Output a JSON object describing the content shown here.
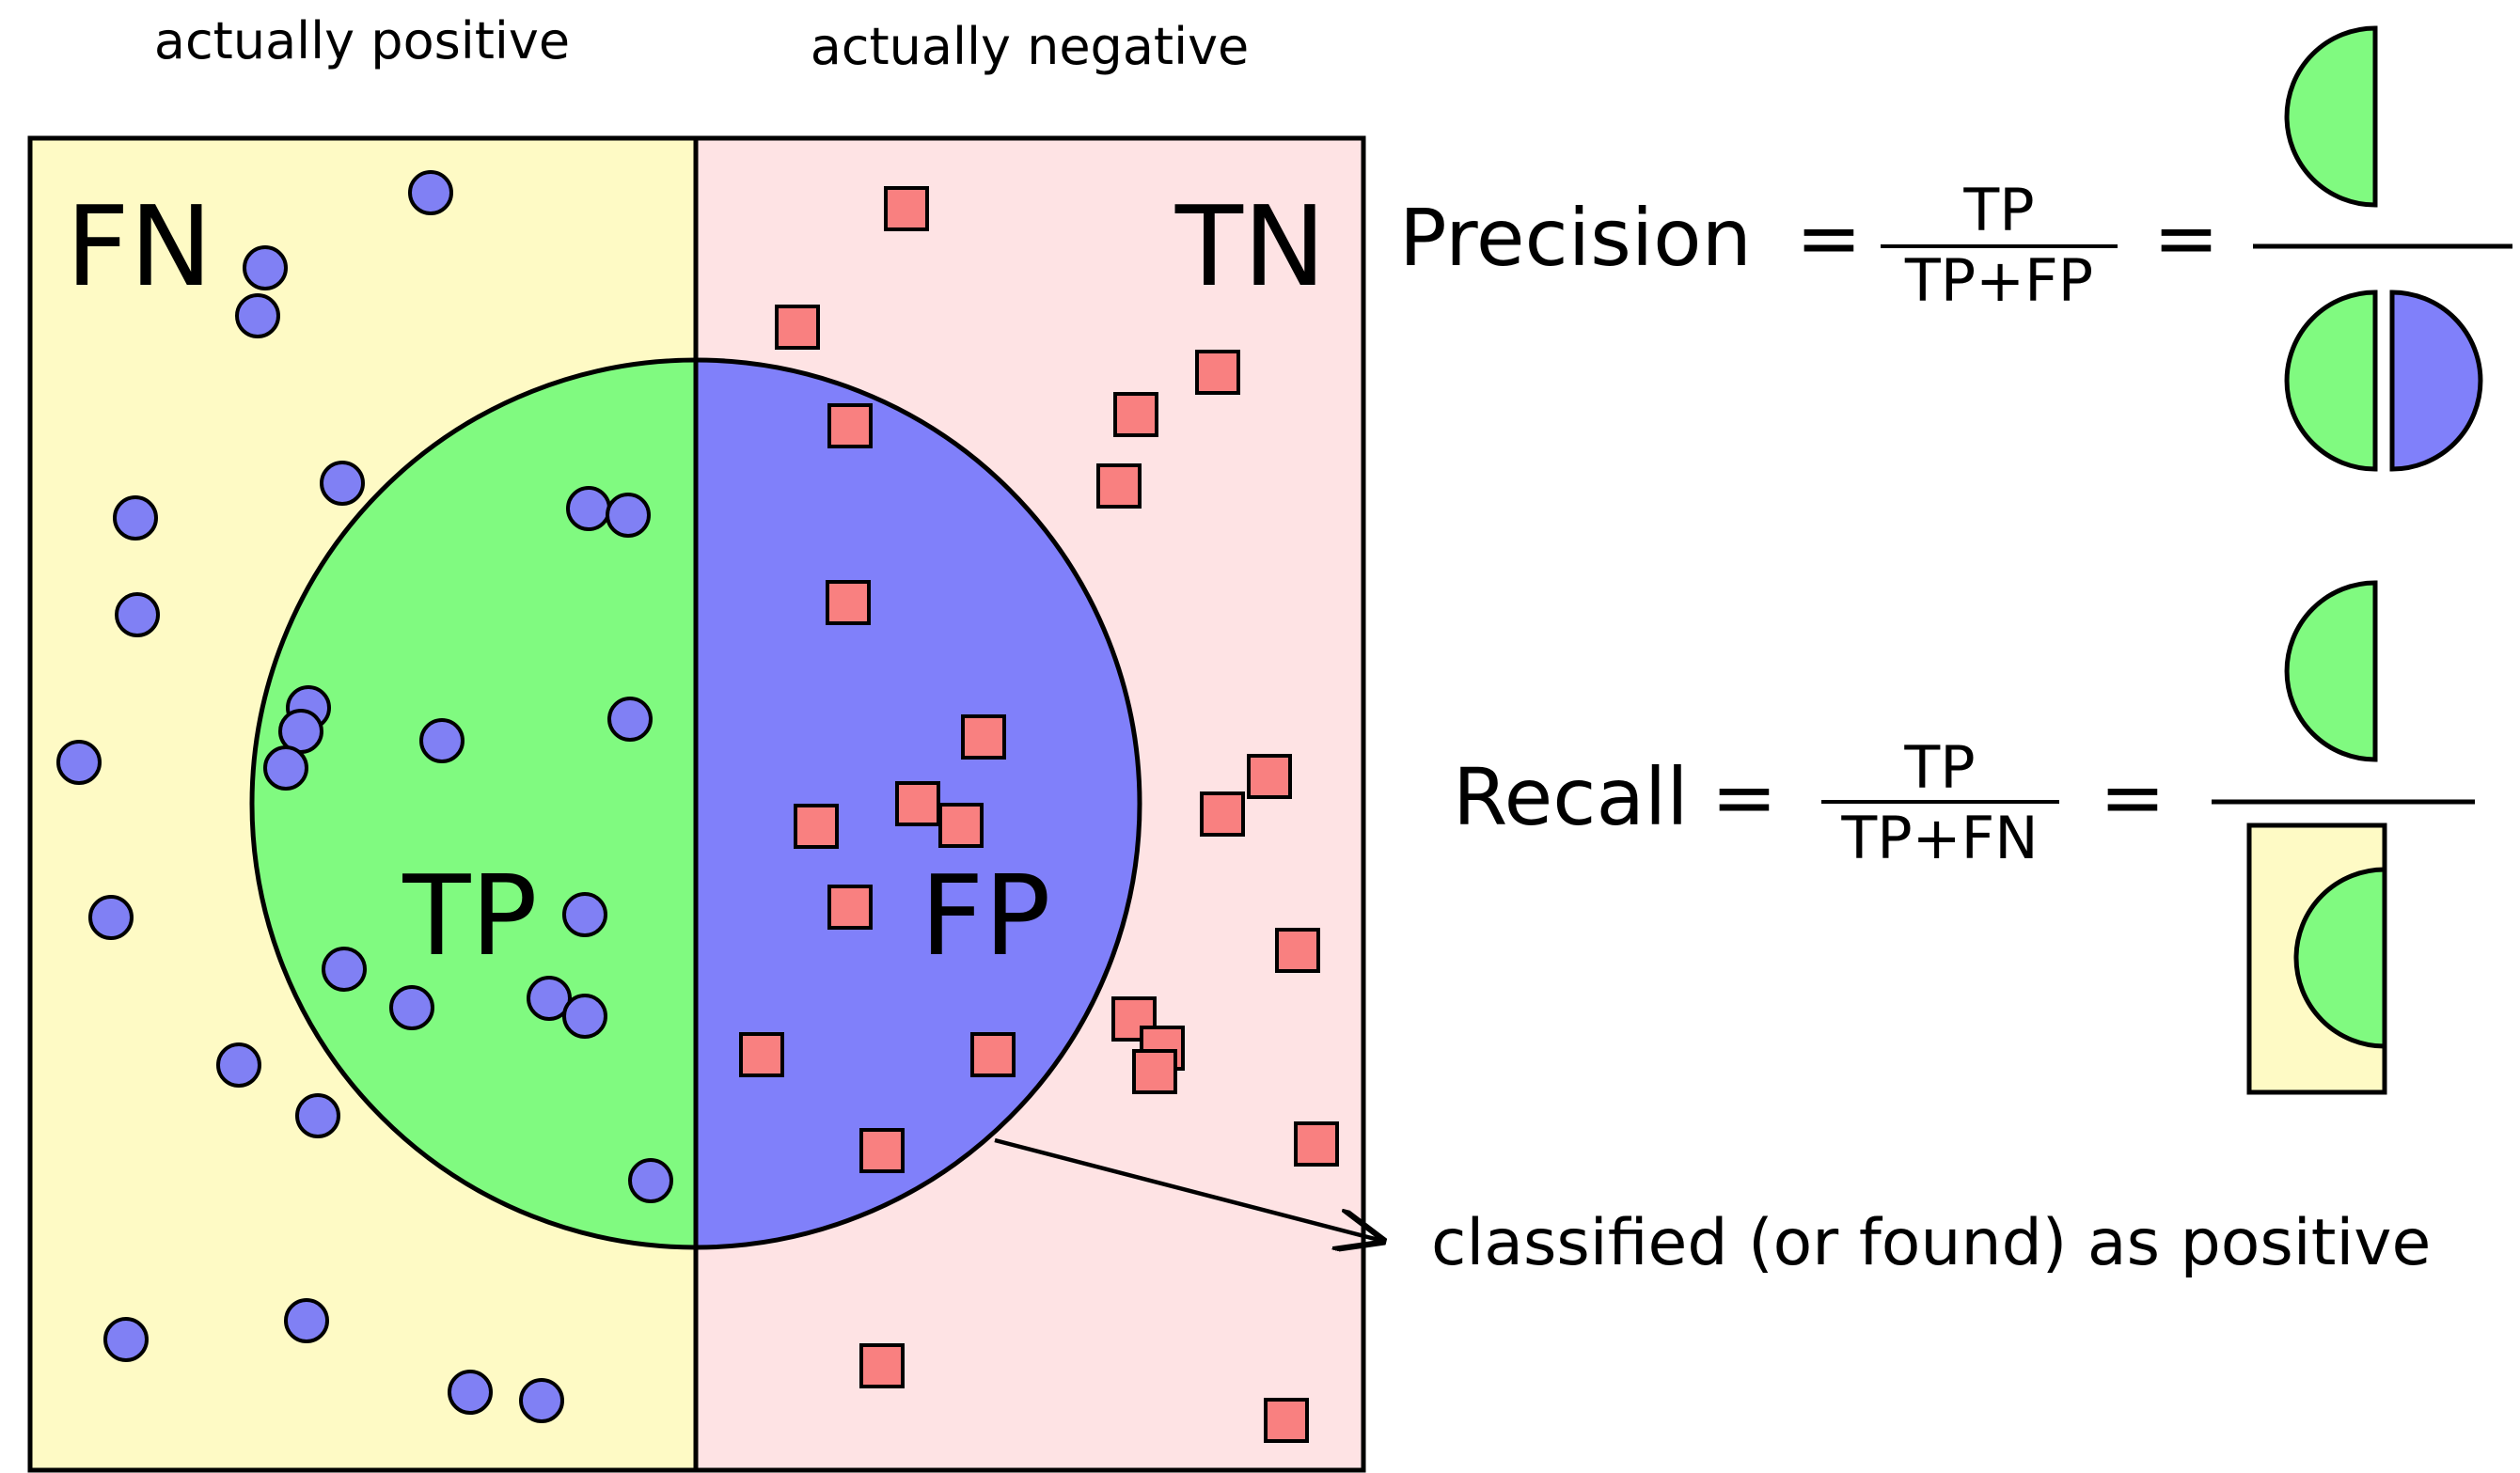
{
  "headers": {
    "actually_positive": "actually positive",
    "actually_negative": "actually negative"
  },
  "regions": {
    "fn": "FN",
    "tn": "TN",
    "tp": "TP",
    "fp": "FP"
  },
  "precision": {
    "label": "Precision",
    "equals": "=",
    "numerator": "TP",
    "denominator": "TP+FP"
  },
  "recall": {
    "label": "Recall",
    "equals": "=",
    "numerator": "TP",
    "denominator": "TP+FN"
  },
  "annotation": {
    "text": "classified (or found) as positive"
  },
  "colors": {
    "positive_side": "#fefac5",
    "negative_side": "#fee3e4",
    "true_positive": "#80fa80",
    "false_positive": "#8080fa",
    "dot": "#8080f4",
    "square": "#f98080",
    "stroke": "#000000"
  },
  "icons": {
    "positive_item": "circle-dot",
    "negative_item": "square-marker"
  }
}
